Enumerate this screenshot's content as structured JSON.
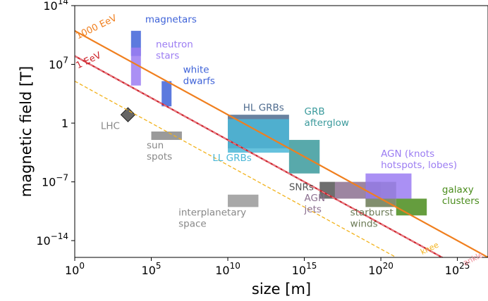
{
  "chart_data": {
    "type": "scatter",
    "xlabel": "size [m]",
    "ylabel": "magnetic field [T]",
    "x_scale": "log10",
    "y_scale": "log10",
    "xlim": [
      1,
      1e+27
    ],
    "ylim": [
      1e-16,
      100000000000000.0
    ],
    "x_ticks": [
      {
        "value": 1,
        "label": "10^0"
      },
      {
        "value": 100000.0,
        "label": "10^5"
      },
      {
        "value": 10000000000.0,
        "label": "10^10"
      },
      {
        "value": 1000000000000000.0,
        "label": "10^15"
      },
      {
        "value": 1e+20,
        "label": "10^20"
      },
      {
        "value": 1e+25,
        "label": "10^25"
      }
    ],
    "y_ticks": [
      {
        "value": 100000000000000.0,
        "label": "10^14"
      },
      {
        "value": 10000000.0,
        "label": "10^7"
      },
      {
        "value": 1,
        "label": "1"
      },
      {
        "value": 1e-07,
        "label": "10^-7"
      },
      {
        "value": 1e-14,
        "label": "10^-14"
      }
    ],
    "hillas_lines": [
      {
        "label": "1000 EeV",
        "color": "#f07f1e",
        "style": "solid",
        "x": [
          1,
          1e+27
        ],
        "y": [
          100000000000.0,
          1e-16
        ]
      },
      {
        "label": "1 EeV",
        "color": "#cc2229",
        "style": "solid",
        "x": [
          1,
          1e+27
        ],
        "y": [
          100000000.0,
          1e-19
        ]
      },
      {
        "label": "ankle",
        "color": "#ef8a96",
        "style": "dashed",
        "x": [
          1,
          1e+27
        ],
        "y": [
          100000000.0,
          1e-19
        ]
      },
      {
        "label": "knee",
        "color": "#f2b21a",
        "style": "dashed",
        "x": [
          1,
          1e+27
        ],
        "y": [
          100000.0,
          1e-22
        ]
      }
    ],
    "regions": [
      {
        "label": "magnetars",
        "color": "#3f63d8",
        "x": [
          10000.0,
          10000.0
        ],
        "y": [
          100000000.0,
          100000000000.0
        ]
      },
      {
        "label": "neutron stars",
        "color": "#9b7cf2",
        "x": [
          10000.0,
          10000.0
        ],
        "y": [
          30000.0,
          1000000000.0
        ]
      },
      {
        "label": "white dwarfs",
        "color": "#3f63d8",
        "x": [
          1000000.0,
          1000000.0
        ],
        "y": [
          100,
          100000.0
        ]
      },
      {
        "label": "LHC",
        "color": "#666666",
        "x": [
          3000.0,
          3000.0
        ],
        "y": [
          10,
          10
        ]
      },
      {
        "label": "sun spots",
        "color": "#888888",
        "x": [
          100000.0,
          10000000.0
        ],
        "y": [
          0.01,
          0.1
        ]
      },
      {
        "label": "HL GRBs",
        "color": "#4f6c8f",
        "x": [
          10000000000.0,
          100000000000000.0
        ],
        "y": [
          0.001,
          10
        ]
      },
      {
        "label": "LL GRBs",
        "color": "#4bb7d7",
        "x": [
          10000000000.0,
          100000000000000.0
        ],
        "y": [
          0.0003,
          3
        ]
      },
      {
        "label": "GRB afterglow",
        "color": "#3b9a9c",
        "x": [
          100000000000000.0,
          1e+16
        ],
        "y": [
          1e-06,
          0.01
        ]
      },
      {
        "label": "interplanetary space",
        "color": "#999999",
        "x": [
          10000000000.0,
          1000000000000.0
        ],
        "y": [
          1e-10,
          3e-09
        ]
      },
      {
        "label": "SNRs",
        "color": "#555555",
        "x": [
          1e+16,
          1e+17
        ],
        "y": [
          1e-09,
          1e-07
        ]
      },
      {
        "label": "AGN jets",
        "color": "#8c7090",
        "x": [
          1e+17,
          1e+20
        ],
        "y": [
          1e-09,
          1e-07
        ]
      },
      {
        "label": "starburst winds",
        "color": "#6b7a55",
        "x": [
          1e+19,
          1e+21
        ],
        "y": [
          1e-10,
          1e-07
        ]
      },
      {
        "label": "AGN (knots hotspots, lobes)",
        "color": "#9b7cf2",
        "x": [
          1e+19,
          1e+22
        ],
        "y": [
          1e-09,
          1e-06
        ]
      },
      {
        "label": "galaxy clusters",
        "color": "#4a8c1c",
        "x": [
          1e+21,
          1e+23
        ],
        "y": [
          1e-11,
          1e-09
        ]
      }
    ]
  }
}
